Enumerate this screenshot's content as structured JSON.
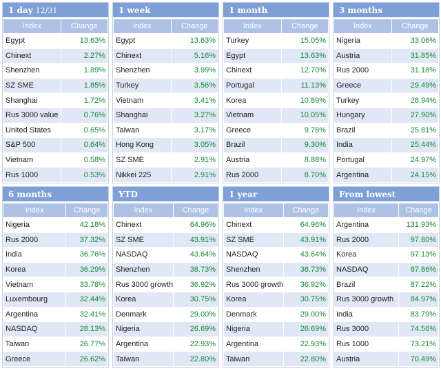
{
  "colors": {
    "title_bg": "#7fa0d6",
    "header_bg": "#aec2e6",
    "row_alt_bg": "#dfe8f4",
    "positive_change": "#17883a"
  },
  "columns": {
    "index": "Index",
    "change": "Change"
  },
  "panels": [
    {
      "title": "1 day",
      "subtitle": "12/31",
      "rows": [
        [
          "Egypt",
          "13.63%"
        ],
        [
          "Chinext",
          "2.27%"
        ],
        [
          "Shenzhen",
          "1.89%"
        ],
        [
          "SZ SME",
          "1.85%"
        ],
        [
          "Shanghai",
          "1.72%"
        ],
        [
          "Rus 3000 value",
          "0.76%"
        ],
        [
          "United States",
          "0.65%"
        ],
        [
          "S&P 500",
          "0.64%"
        ],
        [
          "Vietnam",
          "0.58%"
        ],
        [
          "Rus 1000",
          "0.53%"
        ]
      ]
    },
    {
      "title": "1 week",
      "subtitle": "",
      "rows": [
        [
          "Egypt",
          "13.63%"
        ],
        [
          "Chinext",
          "5.16%"
        ],
        [
          "Shenzhen",
          "3.99%"
        ],
        [
          "Turkey",
          "3.56%"
        ],
        [
          "Vietnam",
          "3.41%"
        ],
        [
          "Shanghai",
          "3.27%"
        ],
        [
          "Taiwan",
          "3.17%"
        ],
        [
          "Hong Kong",
          "3.05%"
        ],
        [
          "SZ SME",
          "2.91%"
        ],
        [
          "Nikkei 225",
          "2.91%"
        ]
      ]
    },
    {
      "title": "1 month",
      "subtitle": "",
      "rows": [
        [
          "Turkey",
          "15.05%"
        ],
        [
          "Egypt",
          "13.63%"
        ],
        [
          "Chinext",
          "12.70%"
        ],
        [
          "Portugal",
          "11.13%"
        ],
        [
          "Korea",
          "10.89%"
        ],
        [
          "Vietnam",
          "10.05%"
        ],
        [
          "Greece",
          "9.78%"
        ],
        [
          "Brazil",
          "9.30%"
        ],
        [
          "Austria",
          "8.88%"
        ],
        [
          "Rus 2000",
          "8.70%"
        ]
      ]
    },
    {
      "title": "3 months",
      "subtitle": "",
      "rows": [
        [
          "Nigeria",
          "33.06%"
        ],
        [
          "Austria",
          "31.85%"
        ],
        [
          "Rus 2000",
          "31.18%"
        ],
        [
          "Greece",
          "29.49%"
        ],
        [
          "Turkey",
          "28.94%"
        ],
        [
          "Hungary",
          "27.90%"
        ],
        [
          "Brazil",
          "25.81%"
        ],
        [
          "India",
          "25.44%"
        ],
        [
          "Portugal",
          "24.97%"
        ],
        [
          "Argentina",
          "24.15%"
        ]
      ]
    },
    {
      "title": "6 months",
      "subtitle": "",
      "rows": [
        [
          "Nigeria",
          "42.18%"
        ],
        [
          "Rus 2000",
          "37.32%"
        ],
        [
          "India",
          "36.76%"
        ],
        [
          "Korea",
          "36.29%"
        ],
        [
          "Vietnam",
          "33.78%"
        ],
        [
          "Luxembourg",
          "32.44%"
        ],
        [
          "Argentina",
          "32.41%"
        ],
        [
          "NASDAQ",
          "28.13%"
        ],
        [
          "Taiwan",
          "26.77%"
        ],
        [
          "Greece",
          "26.62%"
        ]
      ]
    },
    {
      "title": "YTD",
      "subtitle": "",
      "rows": [
        [
          "Chinext",
          "64.96%"
        ],
        [
          "SZ SME",
          "43.91%"
        ],
        [
          "NASDAQ",
          "43.64%"
        ],
        [
          "Shenzhen",
          "38.73%"
        ],
        [
          "Rus 3000 growth",
          "36.92%"
        ],
        [
          "Korea",
          "30.75%"
        ],
        [
          "Denmark",
          "29.00%"
        ],
        [
          "Nigeria",
          "26.69%"
        ],
        [
          "Argentina",
          "22.93%"
        ],
        [
          "Taiwan",
          "22.80%"
        ]
      ]
    },
    {
      "title": "1 year",
      "subtitle": "",
      "rows": [
        [
          "Chinext",
          "64.96%"
        ],
        [
          "SZ SME",
          "43.91%"
        ],
        [
          "NASDAQ",
          "43.64%"
        ],
        [
          "Shenzhen",
          "38.73%"
        ],
        [
          "Rus 3000 growth",
          "36.92%"
        ],
        [
          "Korea",
          "30.75%"
        ],
        [
          "Denmark",
          "29.00%"
        ],
        [
          "Nigeria",
          "26.69%"
        ],
        [
          "Argentina",
          "22.93%"
        ],
        [
          "Taiwan",
          "22.80%"
        ]
      ]
    },
    {
      "title": "From lowest",
      "subtitle": "",
      "rows": [
        [
          "Argentina",
          "131.93%"
        ],
        [
          "Rus 2000",
          "97.80%"
        ],
        [
          "Korea",
          "97.13%"
        ],
        [
          "NASDAQ",
          "87.86%"
        ],
        [
          "Brazil",
          "87.22%"
        ],
        [
          "Rus 3000 growth",
          "84.97%"
        ],
        [
          "India",
          "83.79%"
        ],
        [
          "Rus 3000",
          "74.56%"
        ],
        [
          "Rus 1000",
          "73.21%"
        ],
        [
          "Austria",
          "70.49%"
        ]
      ]
    }
  ]
}
